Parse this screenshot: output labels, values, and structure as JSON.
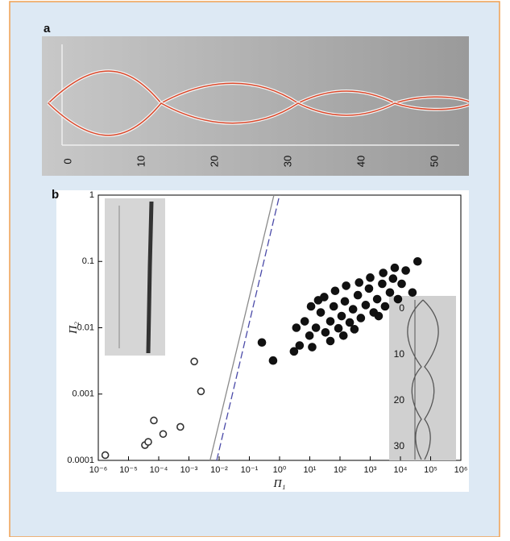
{
  "panel_a": {
    "label": "a",
    "scale": [
      "0",
      "10",
      "20",
      "30",
      "40",
      "50"
    ]
  },
  "chart_data": {
    "type": "scatter",
    "panel_label": "b",
    "x_label": "Π₁",
    "y_label": "Π₂",
    "log_x": true,
    "log_y": true,
    "xlim": [
      1e-06,
      1000000.0
    ],
    "ylim": [
      0.0001,
      1
    ],
    "xticks": [
      {
        "value": 1e-06,
        "label": "10⁻⁶"
      },
      {
        "value": 1e-05,
        "label": "10⁻⁵"
      },
      {
        "value": 0.0001,
        "label": "10⁻⁴"
      },
      {
        "value": 0.001,
        "label": "10⁻³"
      },
      {
        "value": 0.01,
        "label": "10⁻²"
      },
      {
        "value": 0.1,
        "label": "10⁻¹"
      },
      {
        "value": 1,
        "label": "10⁰"
      },
      {
        "value": 10,
        "label": "10¹"
      },
      {
        "value": 100,
        "label": "10²"
      },
      {
        "value": 1000,
        "label": "10³"
      },
      {
        "value": 10000,
        "label": "10⁴"
      },
      {
        "value": 100000,
        "label": "10⁵"
      },
      {
        "value": 1000000,
        "label": "10⁶"
      }
    ],
    "yticks": [
      0.0001,
      0.001,
      0.01,
      0.1,
      1
    ],
    "series": [
      {
        "marker": "open",
        "color": "#333333",
        "x": [
          1.7e-06,
          3.5e-05,
          4.5e-05,
          6.9e-05,
          0.00014,
          0.00052,
          0.0015,
          0.0025
        ],
        "y": [
          0.00012,
          0.00017,
          0.00019,
          0.0004,
          0.00025,
          0.00032,
          0.0031,
          0.0011
        ]
      },
      {
        "marker": "filled",
        "color": "#111111",
        "x": [
          0.26,
          0.61,
          3.0,
          4.6,
          3.6,
          6.8,
          9.8,
          16,
          23,
          33,
          48,
          62,
          89,
          113,
          145,
          210,
          270,
          390,
          490,
          710,
          910,
          1300,
          1700,
          2500,
          3100,
          4500,
          5700,
          8300,
          11000,
          15000,
          37000,
          25000,
          19,
          30,
          69,
          160,
          430,
          1000,
          2700,
          6500,
          11,
          300,
          130,
          12,
          48,
          1900
        ],
        "y": [
          0.006,
          0.0032,
          0.0044,
          0.0054,
          0.01,
          0.0125,
          0.0076,
          0.01,
          0.017,
          0.0085,
          0.0125,
          0.021,
          0.0098,
          0.015,
          0.025,
          0.012,
          0.019,
          0.031,
          0.014,
          0.022,
          0.039,
          0.017,
          0.027,
          0.046,
          0.021,
          0.034,
          0.055,
          0.027,
          0.046,
          0.073,
          0.1,
          0.034,
          0.026,
          0.029,
          0.036,
          0.043,
          0.048,
          0.057,
          0.067,
          0.08,
          0.021,
          0.0095,
          0.0076,
          0.0051,
          0.0063,
          0.015
        ]
      }
    ],
    "lines": [
      {
        "style": "solid",
        "color": "#8a8a8a",
        "x": [
          0.005,
          0.65
        ],
        "y": [
          0.0001,
          1
        ]
      },
      {
        "style": "dashed",
        "color": "#4a4aa8",
        "x": [
          0.0083,
          1
        ],
        "y": [
          0.0001,
          1
        ]
      }
    ],
    "inset_scale": [
      "0",
      "10",
      "20",
      "30"
    ]
  }
}
